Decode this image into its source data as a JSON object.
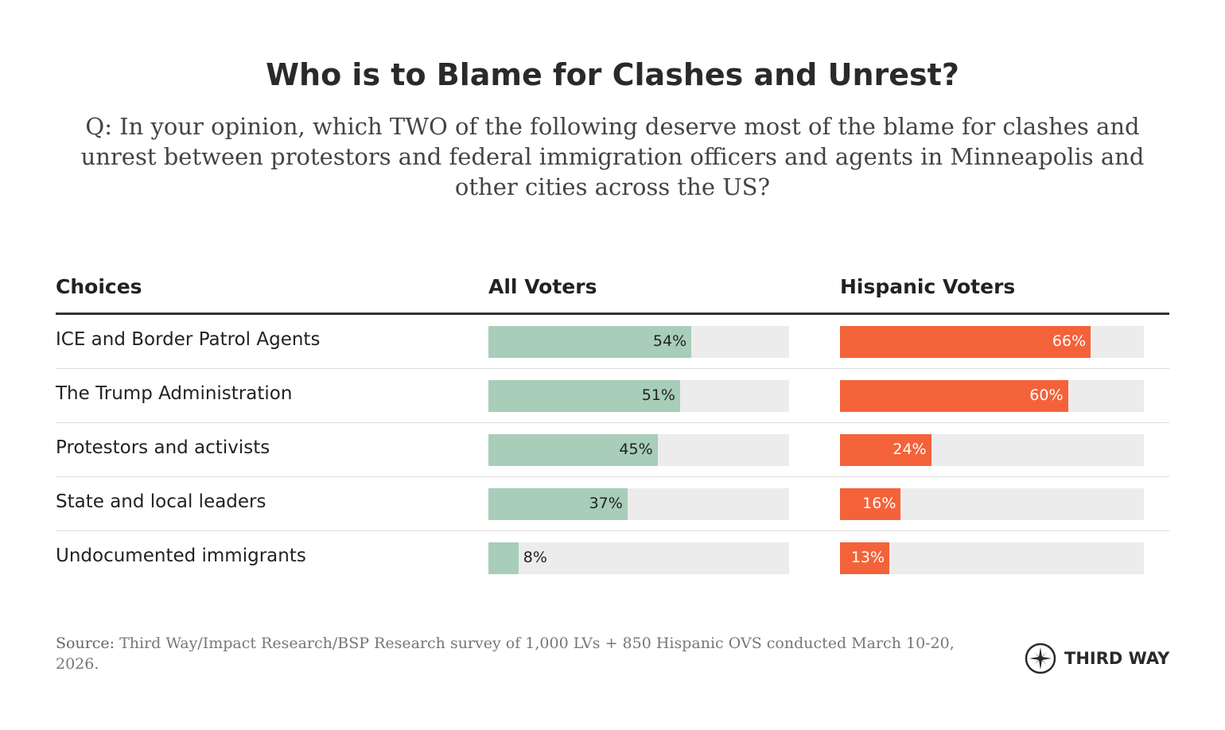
{
  "chart_data": {
    "type": "bar",
    "title": "Who is to Blame for Clashes and Unrest?",
    "subtitle": "Q: In your opinion, which TWO of the following deserve most of the blame for clashes and unrest between protestors and federal immigration officers and agents in Minneapolis and other cities across the US?",
    "column_headers": {
      "choices": "Choices",
      "all": "All Voters",
      "hispanic": "Hispanic Voters"
    },
    "categories": [
      "ICE and Border Patrol Agents",
      "The Trump Administration",
      "Protestors and activists",
      "State and local leaders",
      "Undocumented immigrants"
    ],
    "series": [
      {
        "name": "All Voters",
        "values": [
          54,
          51,
          45,
          37,
          8
        ],
        "labels": [
          "54%",
          "51%",
          "45%",
          "37%",
          "8%"
        ],
        "color": "#a8cdb9"
      },
      {
        "name": "Hispanic Voters",
        "values": [
          66,
          60,
          24,
          16,
          13
        ],
        "labels": [
          "66%",
          "60%",
          "24%",
          "16%",
          "13%"
        ],
        "color": "#f4623a"
      }
    ],
    "xlim": [
      0,
      80
    ],
    "track_color": "#ececec"
  },
  "footer": {
    "source_label": "Source:",
    "source_text": " Third Way/Impact Research/BSP Research survey of 1,000 LVs + 850 Hispanic OVS conducted March 10-20, 2026.",
    "logo": "THIRD WAY"
  }
}
